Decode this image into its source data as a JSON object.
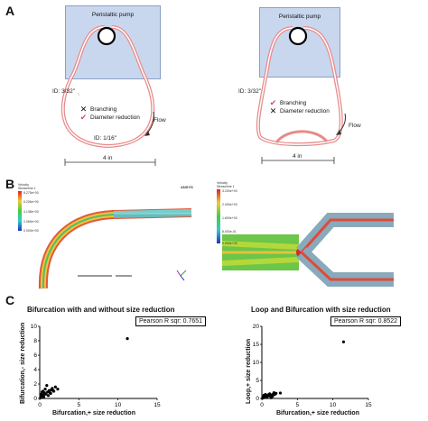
{
  "panels": {
    "a_letter": "A",
    "b_letter": "B",
    "c_letter": "C"
  },
  "panel_a": {
    "left": {
      "pump_title": "Peristaltic pump",
      "id_outer": "ID: 3/32\"",
      "id_inner": "ID: 1/16\"",
      "legend": [
        {
          "icon": "x-mark-icon",
          "text": "Branching"
        },
        {
          "icon": "check-mark-icon",
          "text": "Diameter reduction"
        }
      ],
      "flow": "Flow",
      "length": "4 in"
    },
    "right": {
      "pump_title": "Peristaltic pump",
      "id_outer": "ID: 3/32\"",
      "legend": [
        {
          "icon": "check-mark-icon",
          "text": "Branching"
        },
        {
          "icon": "x-mark-icon",
          "text": "Diameter reduction"
        }
      ],
      "flow": "Flow",
      "length": "4 in"
    },
    "colors": {
      "pump": "#c9d7ee",
      "tube": "#e88a8a",
      "check": "#d14a7a"
    }
  },
  "panel_b": {
    "left": {
      "legend_title": "Velocity",
      "legend_sub": "Streamline 1",
      "legend_ticks": [
        "8.275e+00",
        "6.206e+00",
        "4.138e+00",
        "2.069e+00",
        "0.000e+00"
      ],
      "logo": "ANSYS"
    },
    "right": {
      "legend_title": "Velocity",
      "legend_sub": "Streamline 1",
      "legend_ticks": [
        "3.200e+00",
        "2.400e+00",
        "1.600e+00",
        "8.000e-01",
        "0.000e+00"
      ]
    }
  },
  "chart_data": [
    {
      "type": "scatter",
      "title": "Bifurcation with and without size reduction",
      "xlabel": "Bifurcation,+ size reduction",
      "ylabel": "Bifurcation,- size reduction",
      "xlim": [
        0,
        15
      ],
      "ylim": [
        0,
        10
      ],
      "xticks": [
        "0",
        "5",
        "10",
        "15"
      ],
      "yticks": [
        "0",
        "2",
        "4",
        "6",
        "8",
        "10"
      ],
      "annotation": "Pearson  R sqr: 0.7651",
      "x": [
        0.1,
        0.2,
        0.3,
        0.4,
        0.5,
        0.6,
        0.8,
        1.0,
        1.2,
        1.4,
        1.6,
        1.8,
        2.0,
        0.3,
        0.7,
        1.1,
        1.5,
        0.2,
        0.9,
        1.3,
        1.7,
        2.3,
        0.5,
        0.4,
        11.2
      ],
      "y": [
        0.1,
        0.3,
        0.2,
        0.5,
        0.4,
        0.8,
        0.6,
        0.9,
        1.1,
        0.7,
        1.4,
        1.0,
        1.6,
        0.9,
        1.3,
        0.4,
        1.2,
        0.6,
        1.8,
        0.8,
        1.1,
        1.3,
        0.2,
        1.0,
        8.3
      ]
    },
    {
      "type": "scatter",
      "title": "Loop and Bifurcation with size reduction",
      "xlabel": "Bifurcation,+ size reduction",
      "ylabel": "Loop,+ size reduction",
      "xlim": [
        0,
        15
      ],
      "ylim": [
        0,
        20
      ],
      "xticks": [
        "0",
        "5",
        "10",
        "15"
      ],
      "yticks": [
        "0",
        "5",
        "10",
        "15",
        "20"
      ],
      "annotation": "Pearson  R sqr: 0.8522",
      "x": [
        0.1,
        0.2,
        0.3,
        0.4,
        0.5,
        0.6,
        0.8,
        1.0,
        1.2,
        1.4,
        1.6,
        1.8,
        2.0,
        0.3,
        0.7,
        1.1,
        1.5,
        0.2,
        0.9,
        1.3,
        1.7,
        0.5,
        0.4,
        2.6,
        11.5
      ],
      "y": [
        0.1,
        0.2,
        0.4,
        0.3,
        0.6,
        0.5,
        0.8,
        0.7,
        1.0,
        0.9,
        1.2,
        1.1,
        1.4,
        0.9,
        0.3,
        1.3,
        0.6,
        0.5,
        1.0,
        0.2,
        1.6,
        1.1,
        0.8,
        1.5,
        15.7
      ]
    }
  ]
}
